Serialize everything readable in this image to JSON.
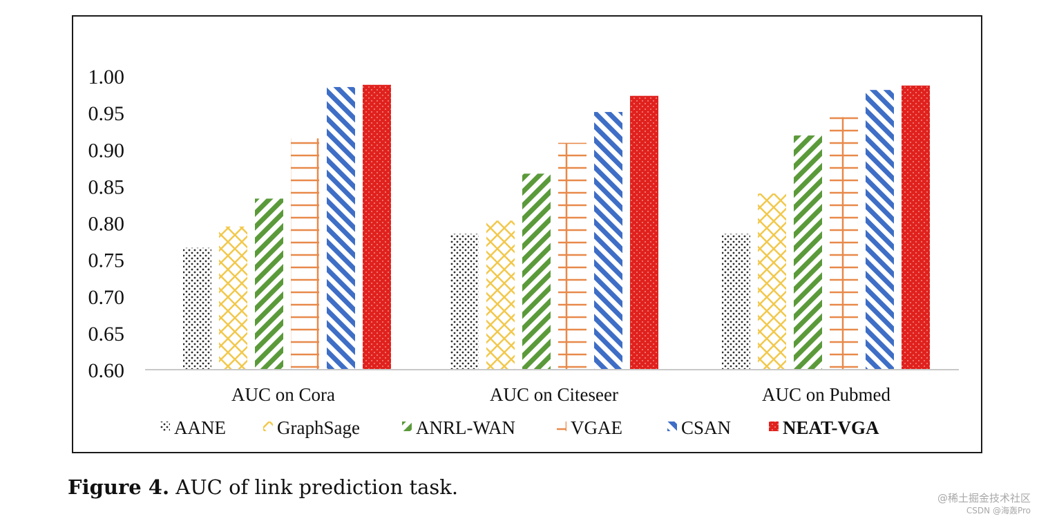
{
  "chart_data": {
    "type": "bar",
    "title": "",
    "xlabel": "",
    "ylabel": "",
    "ylim": [
      0.6,
      1.0
    ],
    "yticks": [
      "1.00",
      "0.95",
      "0.90",
      "0.85",
      "0.80",
      "0.75",
      "0.70",
      "0.65",
      "0.60"
    ],
    "categories": [
      "AUC on Cora",
      "AUC on Citeseer",
      "AUC on Pubmed"
    ],
    "series": [
      {
        "name": "AANE",
        "values": [
          0.766,
          0.785,
          0.785
        ],
        "color": "#2b2b2b",
        "pattern": "dots"
      },
      {
        "name": "GraphSage",
        "values": [
          0.795,
          0.803,
          0.84
        ],
        "color": "#f2c84b",
        "pattern": "crosshatch"
      },
      {
        "name": "ANRL-WAN",
        "values": [
          0.833,
          0.867,
          0.919
        ],
        "color": "#5b9a3a",
        "pattern": "forward-diagonal"
      },
      {
        "name": "VGAE",
        "values": [
          0.915,
          0.909,
          0.944
        ],
        "color": "#e8894a",
        "pattern": "grid"
      },
      {
        "name": "CSAN",
        "values": [
          0.985,
          0.951,
          0.981
        ],
        "color": "#3e6ec6",
        "pattern": "backward-diagonal"
      },
      {
        "name": "NEAT-VGA",
        "values": [
          0.988,
          0.973,
          0.987
        ],
        "color": "#e0211d",
        "pattern": "solid-dotted"
      }
    ],
    "legend": {
      "position": "bottom",
      "bold_entries": [
        "NEAT-VGA"
      ]
    },
    "grid": false
  },
  "caption": {
    "label": "Figure 4.",
    "text": "AUC of link prediction task."
  },
  "watermark": {
    "line1": "@稀土掘金技术社区",
    "line2": "CSDN @海轰Pro"
  }
}
